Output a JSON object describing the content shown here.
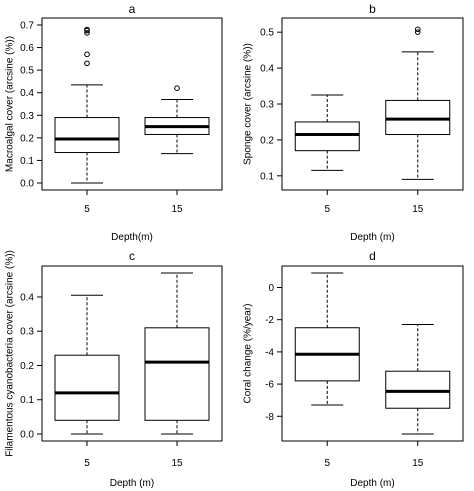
{
  "chart_data": [
    {
      "type": "box",
      "title": "a",
      "xlabel": "Depth(m)",
      "ylabel": "Macroalgal cover (arcsine (%))",
      "categories": [
        "5",
        "15"
      ],
      "ylim": [
        0,
        0.7
      ],
      "yticks": [
        "0.0",
        "0.1",
        "0.2",
        "0.3",
        "0.4",
        "0.5",
        "0.6",
        "0.7"
      ],
      "boxes": [
        {
          "category": "5",
          "min": 0.0,
          "q1": 0.135,
          "median": 0.195,
          "q3": 0.29,
          "max": 0.435,
          "outliers": [
            0.53,
            0.57,
            0.665,
            0.675,
            0.68
          ]
        },
        {
          "category": "15",
          "min": 0.13,
          "q1": 0.215,
          "median": 0.25,
          "q3": 0.29,
          "max": 0.37,
          "outliers": [
            0.42
          ]
        }
      ]
    },
    {
      "type": "box",
      "title": "b",
      "xlabel": "Depth (m)",
      "ylabel": "Sponge cover (arcsine (%))",
      "categories": [
        "5",
        "15"
      ],
      "ylim": [
        0.08,
        0.52
      ],
      "yticks": [
        "0.1",
        "0.2",
        "0.3",
        "0.4",
        "0.5"
      ],
      "boxes": [
        {
          "category": "5",
          "min": 0.115,
          "q1": 0.17,
          "median": 0.215,
          "q3": 0.25,
          "max": 0.325,
          "outliers": []
        },
        {
          "category": "15",
          "min": 0.09,
          "q1": 0.215,
          "median": 0.258,
          "q3": 0.31,
          "max": 0.445,
          "outliers": [
            0.5,
            0.508
          ]
        }
      ]
    },
    {
      "type": "box",
      "title": "c",
      "xlabel": "Depth (m)",
      "ylabel": "Filamentous cyanobacteria cover (arcsine (%))",
      "categories": [
        "5",
        "15"
      ],
      "ylim": [
        0,
        0.47
      ],
      "yticks": [
        "0.0",
        "0.1",
        "0.2",
        "0.3",
        "0.4"
      ],
      "boxes": [
        {
          "category": "5",
          "min": 0.0,
          "q1": 0.04,
          "median": 0.12,
          "q3": 0.23,
          "max": 0.405,
          "outliers": []
        },
        {
          "category": "15",
          "min": 0.0,
          "q1": 0.04,
          "median": 0.21,
          "q3": 0.31,
          "max": 0.47,
          "outliers": []
        }
      ]
    },
    {
      "type": "box",
      "title": "d",
      "xlabel": "Depth (m)",
      "ylabel": "Coral change (%/year)",
      "categories": [
        "5",
        "15"
      ],
      "ylim": [
        -9.1,
        0.9
      ],
      "yticks": [
        "-8",
        "-6",
        "-4",
        "-2",
        "0"
      ],
      "boxes": [
        {
          "category": "5",
          "min": -7.3,
          "q1": -5.8,
          "median": -4.15,
          "q3": -2.5,
          "max": 0.9,
          "outliers": []
        },
        {
          "category": "15",
          "min": -9.1,
          "q1": -7.5,
          "median": -6.45,
          "q3": -5.2,
          "max": -2.3,
          "outliers": []
        }
      ]
    }
  ]
}
